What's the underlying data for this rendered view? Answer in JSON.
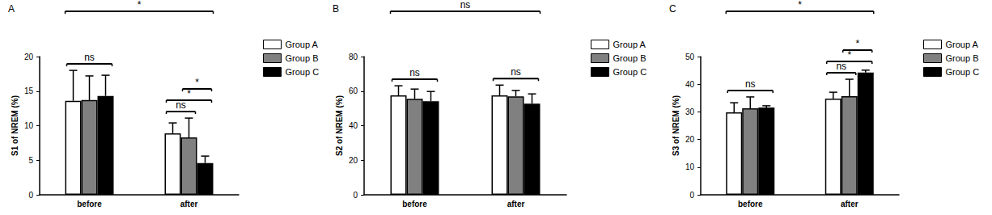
{
  "chart_data": [
    {
      "type": "bar",
      "title": "A",
      "ylabel": "S1 of NREM (%)",
      "categories": [
        "before",
        "after"
      ],
      "series": [
        {
          "name": "Group A",
          "color": "#ffffff",
          "values": [
            13.6,
            8.9
          ],
          "errors": [
            4.4,
            1.5
          ]
        },
        {
          "name": "Group B",
          "color": "#808080",
          "values": [
            13.7,
            8.3
          ],
          "errors": [
            3.5,
            2.8
          ]
        },
        {
          "name": "Group C",
          "color": "#000000",
          "values": [
            14.3,
            4.6
          ],
          "errors": [
            3.0,
            1.0
          ]
        }
      ],
      "ylim": [
        0,
        20
      ],
      "yticks": [
        0,
        5,
        10,
        15,
        20
      ],
      "grid": false,
      "legend": "right",
      "comparisons": [
        {
          "label": "ns",
          "category": "before",
          "groups": [
            "Group A",
            "Group C"
          ]
        },
        {
          "label": "ns",
          "category": "after",
          "groups": [
            "Group A",
            "Group B"
          ]
        },
        {
          "label": "*",
          "category": "after",
          "groups": [
            "Group A",
            "Group C"
          ]
        },
        {
          "label": "*",
          "category": "after",
          "groups": [
            "Group B",
            "Group C"
          ]
        },
        {
          "label": "*",
          "categories": [
            "before",
            "after"
          ]
        }
      ]
    },
    {
      "type": "bar",
      "title": "B",
      "ylabel": "S2 of NREM (%)",
      "categories": [
        "before",
        "after"
      ],
      "series": [
        {
          "name": "Group A",
          "color": "#ffffff",
          "values": [
            57.5,
            57.5
          ],
          "errors": [
            5.6,
            6.0
          ]
        },
        {
          "name": "Group B",
          "color": "#808080",
          "values": [
            55.6,
            57.0
          ],
          "errors": [
            5.6,
            3.4
          ]
        },
        {
          "name": "Group C",
          "color": "#000000",
          "values": [
            54.2,
            52.8
          ],
          "errors": [
            5.6,
            5.6
          ]
        }
      ],
      "ylim": [
        0,
        80
      ],
      "yticks": [
        0,
        20,
        40,
        60,
        80
      ],
      "grid": false,
      "legend": "right",
      "comparisons": [
        {
          "label": "ns",
          "category": "before",
          "groups": [
            "Group A",
            "Group C"
          ]
        },
        {
          "label": "ns",
          "category": "after",
          "groups": [
            "Group A",
            "Group C"
          ]
        },
        {
          "label": "ns",
          "categories": [
            "before",
            "after"
          ]
        }
      ]
    },
    {
      "type": "bar",
      "title": "C",
      "ylabel": "S3 of NREM (%)",
      "categories": [
        "before",
        "after"
      ],
      "series": [
        {
          "name": "Group A",
          "color": "#ffffff",
          "values": [
            29.8,
            34.8
          ],
          "errors": [
            3.5,
            2.3
          ]
        },
        {
          "name": "Group B",
          "color": "#808080",
          "values": [
            31.3,
            35.7
          ],
          "errors": [
            4.1,
            6.1
          ]
        },
        {
          "name": "Group C",
          "color": "#000000",
          "values": [
            31.6,
            44.2
          ],
          "errors": [
            0.6,
            0.9
          ]
        }
      ],
      "ylim": [
        0,
        50
      ],
      "yticks": [
        0,
        10,
        20,
        30,
        40,
        50
      ],
      "grid": false,
      "legend": "right",
      "comparisons": [
        {
          "label": "ns",
          "category": "before",
          "groups": [
            "Group A",
            "Group C"
          ]
        },
        {
          "label": "ns",
          "category": "after",
          "groups": [
            "Group A",
            "Group B"
          ]
        },
        {
          "label": "*",
          "category": "after",
          "groups": [
            "Group A",
            "Group C"
          ]
        },
        {
          "label": "*",
          "category": "after",
          "groups": [
            "Group B",
            "Group C"
          ]
        },
        {
          "label": "*",
          "categories": [
            "before",
            "after"
          ]
        }
      ]
    }
  ]
}
